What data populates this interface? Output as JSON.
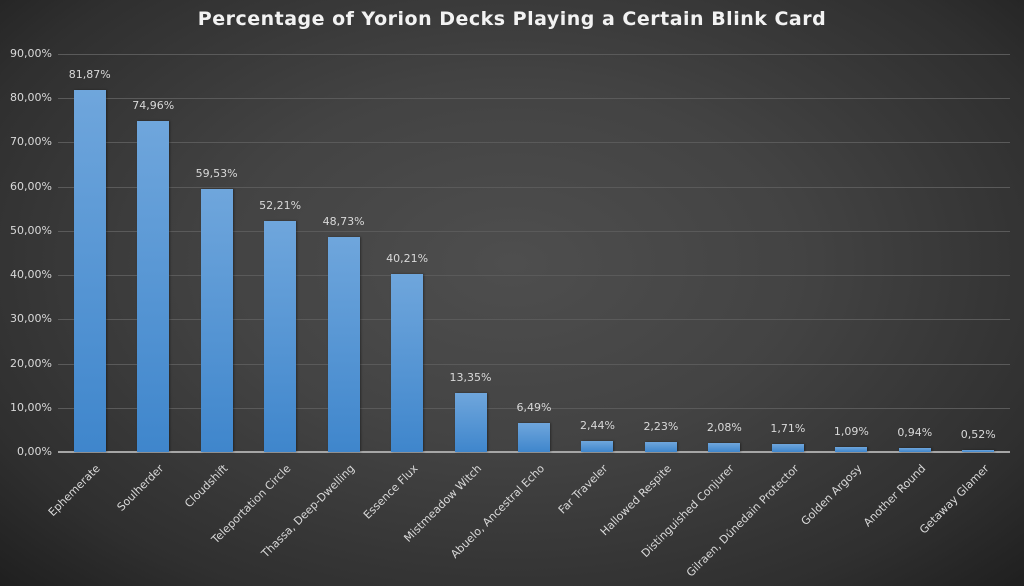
{
  "chart_data": {
    "type": "bar",
    "title": "Percentage of Yorion Decks Playing a Certain Blink Card",
    "xlabel": "",
    "ylabel": "",
    "ylim": [
      0,
      90
    ],
    "yticks": [
      "0,00%",
      "10,00%",
      "20,00%",
      "30,00%",
      "40,00%",
      "50,00%",
      "60,00%",
      "70,00%",
      "80,00%",
      "90,00%"
    ],
    "grid": true,
    "legend": "none",
    "categories": [
      "Ephemerate",
      "Soulherder",
      "Cloudshift",
      "Teleportation Circle",
      "Thassa, Deep-Dwelling",
      "Essence Flux",
      "Mistmeadow Witch",
      "Abuelo, Ancestral Echo",
      "Far Traveler",
      "Hallowed Respite",
      "Distinguished Conjurer",
      "Gilraen, Dúnedain Protector",
      "Golden Argosy",
      "Another Round",
      "Getaway Glamer"
    ],
    "values": [
      81.87,
      74.96,
      59.53,
      52.21,
      48.73,
      40.21,
      13.35,
      6.49,
      2.44,
      2.23,
      2.08,
      1.71,
      1.09,
      0.94,
      0.52
    ],
    "labels": [
      "81,87%",
      "74,96%",
      "59,53%",
      "52,21%",
      "48,73%",
      "40,21%",
      "13,35%",
      "6,49%",
      "2,44%",
      "2,23%",
      "2,08%",
      "1,71%",
      "1,09%",
      "0,94%",
      "0,52%"
    ],
    "colors": {
      "bar": "#5b9bd5",
      "background": "#404040",
      "text": "#d9d9d9"
    }
  }
}
